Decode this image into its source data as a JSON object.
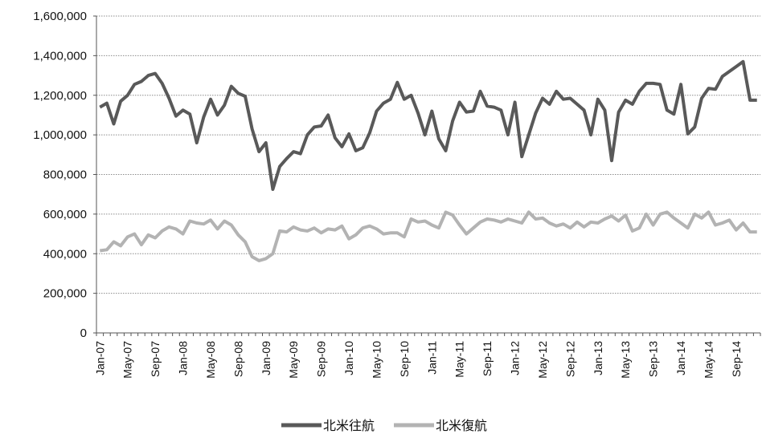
{
  "chart_data": {
    "type": "line",
    "title": "",
    "xlabel": "",
    "ylabel": "",
    "ylim": [
      0,
      1600000
    ],
    "yticks": [
      "0",
      "200,000",
      "400,000",
      "600,000",
      "800,000",
      "1,000,000",
      "1,200,000",
      "1,400,000",
      "1,600,000"
    ],
    "grid": true,
    "legend": "bottom-center",
    "x": [
      "Jan-07",
      "Feb-07",
      "Mar-07",
      "Apr-07",
      "May-07",
      "Jun-07",
      "Jul-07",
      "Aug-07",
      "Sep-07",
      "Oct-07",
      "Nov-07",
      "Dec-07",
      "Jan-08",
      "Feb-08",
      "Mar-08",
      "Apr-08",
      "May-08",
      "Jun-08",
      "Jul-08",
      "Aug-08",
      "Sep-08",
      "Oct-08",
      "Nov-08",
      "Dec-08",
      "Jan-09",
      "Feb-09",
      "Mar-09",
      "Apr-09",
      "May-09",
      "Jun-09",
      "Jul-09",
      "Aug-09",
      "Sep-09",
      "Oct-09",
      "Nov-09",
      "Dec-09",
      "Jan-10",
      "Feb-10",
      "Mar-10",
      "Apr-10",
      "May-10",
      "Jun-10",
      "Jul-10",
      "Aug-10",
      "Sep-10",
      "Oct-10",
      "Nov-10",
      "Dec-10",
      "Jan-11",
      "Feb-11",
      "Mar-11",
      "Apr-11",
      "May-11",
      "Jun-11",
      "Jul-11",
      "Aug-11",
      "Sep-11",
      "Oct-11",
      "Nov-11",
      "Dec-11",
      "Jan-12",
      "Feb-12",
      "Mar-12",
      "Apr-12",
      "May-12",
      "Jun-12",
      "Jul-12",
      "Aug-12",
      "Sep-12",
      "Oct-12",
      "Nov-12",
      "Dec-12",
      "Jan-13",
      "Feb-13",
      "Mar-13",
      "Apr-13",
      "May-13",
      "Jun-13",
      "Jul-13",
      "Aug-13",
      "Sep-13",
      "Oct-13",
      "Nov-13",
      "Dec-13",
      "Jan-14",
      "Feb-14",
      "Mar-14",
      "Apr-14",
      "May-14",
      "Jun-14",
      "Jul-14",
      "Aug-14",
      "Sep-14",
      "Oct-14",
      "Nov-14",
      "Dec-14"
    ],
    "xticklabels": [
      "Jan-07",
      "May-07",
      "Sep-07",
      "Jan-08",
      "May-08",
      "Sep-08",
      "Jan-09",
      "May-09",
      "Sep-09",
      "Jan-10",
      "May-10",
      "Sep-10",
      "Jan-11",
      "May-11",
      "Sep-11",
      "Jan-12",
      "May-12",
      "Sep-12",
      "Jan-13",
      "May-13",
      "Sep-13",
      "Jan-14",
      "May-14",
      "Sep-14"
    ],
    "series": [
      {
        "name": "北米往航",
        "color": "#595959",
        "values": [
          1140000,
          1160000,
          1055000,
          1170000,
          1200000,
          1255000,
          1270000,
          1300000,
          1310000,
          1260000,
          1185000,
          1095000,
          1125000,
          1105000,
          960000,
          1090000,
          1180000,
          1100000,
          1150000,
          1245000,
          1210000,
          1195000,
          1030000,
          915000,
          960000,
          725000,
          840000,
          880000,
          915000,
          905000,
          1000000,
          1040000,
          1045000,
          1100000,
          985000,
          940000,
          1005000,
          920000,
          935000,
          1010000,
          1120000,
          1160000,
          1180000,
          1265000,
          1180000,
          1200000,
          1110000,
          1000000,
          1120000,
          980000,
          920000,
          1070000,
          1165000,
          1115000,
          1120000,
          1220000,
          1145000,
          1140000,
          1125000,
          1000000,
          1165000,
          890000,
          1000000,
          1110000,
          1185000,
          1155000,
          1220000,
          1180000,
          1185000,
          1155000,
          1125000,
          1000000,
          1180000,
          1125000,
          870000,
          1115000,
          1175000,
          1155000,
          1220000,
          1260000,
          1260000,
          1255000,
          1125000,
          1105000,
          1255000,
          1005000,
          1040000,
          1185000,
          1235000,
          1230000,
          1295000,
          1320000,
          1345000,
          1370000,
          1175000,
          1175000
        ]
      },
      {
        "name": "北米復航",
        "color": "#b3b3b3",
        "values": [
          415000,
          420000,
          460000,
          440000,
          485000,
          500000,
          445000,
          495000,
          480000,
          515000,
          535000,
          525000,
          500000,
          565000,
          555000,
          550000,
          570000,
          525000,
          565000,
          545000,
          495000,
          460000,
          385000,
          365000,
          375000,
          400000,
          515000,
          510000,
          535000,
          520000,
          515000,
          530000,
          505000,
          525000,
          520000,
          540000,
          475000,
          495000,
          530000,
          540000,
          525000,
          500000,
          505000,
          505000,
          485000,
          575000,
          560000,
          565000,
          545000,
          530000,
          610000,
          595000,
          545000,
          500000,
          530000,
          560000,
          575000,
          570000,
          560000,
          575000,
          565000,
          555000,
          610000,
          575000,
          580000,
          555000,
          540000,
          550000,
          530000,
          560000,
          535000,
          560000,
          555000,
          575000,
          590000,
          565000,
          595000,
          515000,
          530000,
          600000,
          545000,
          600000,
          610000,
          580000,
          555000,
          530000,
          600000,
          580000,
          610000,
          545000,
          555000,
          570000,
          520000,
          555000,
          510000,
          510000
        ]
      }
    ]
  }
}
